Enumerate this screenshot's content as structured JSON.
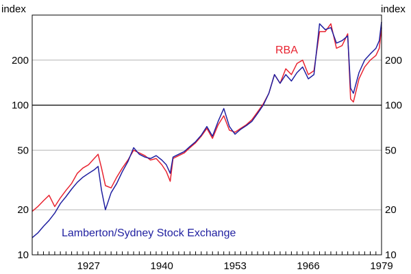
{
  "chart_data": {
    "type": "line",
    "title": "",
    "xlabel": "",
    "ylabel": "index",
    "y_unit_left": "index",
    "y_unit_right": "index",
    "y_scale": "log",
    "ylim": [
      10,
      400
    ],
    "xlim": [
      1917,
      1979
    ],
    "y_ticks": [
      10,
      20,
      50,
      100,
      200
    ],
    "x_ticks": [
      "1927",
      "1940",
      "1953",
      "1966",
      "1979"
    ],
    "grid": true,
    "reference_line_y": 100,
    "legend": "labels-on-chart",
    "colors": {
      "RBA": "#e8222f",
      "Lamberton/Sydney Stock Exchange": "#1f1fa0"
    },
    "series": [
      {
        "name": "RBA",
        "label_text": "RBA",
        "x": [
          1917,
          1918,
          1919,
          1920,
          1921,
          1922,
          1923,
          1924,
          1925,
          1926,
          1927,
          1928,
          1928.7,
          1929.3,
          1930,
          1931,
          1932,
          1933,
          1934,
          1935,
          1936,
          1937,
          1938,
          1939,
          1940,
          1940.8,
          1941.5,
          1942,
          1943,
          1944,
          1945,
          1946,
          1947,
          1948,
          1949,
          1950,
          1951,
          1952,
          1953,
          1954,
          1955,
          1956,
          1957,
          1958,
          1959,
          1960,
          1961,
          1962,
          1963,
          1964,
          1965,
          1966,
          1967,
          1968,
          1969,
          1970,
          1971,
          1972,
          1973,
          1973.5,
          1974,
          1975,
          1976,
          1977,
          1978,
          1978.6,
          1979
        ],
        "values": [
          19.5,
          21,
          23,
          25,
          21,
          24,
          27,
          30,
          35,
          38,
          40,
          44,
          47,
          38,
          29,
          28,
          33,
          38,
          43,
          50,
          48,
          46,
          43,
          44,
          40,
          36,
          31,
          44,
          46,
          48,
          52,
          56,
          62,
          70,
          60,
          74,
          85,
          68,
          66,
          70,
          74,
          80,
          90,
          102,
          120,
          160,
          140,
          175,
          160,
          190,
          200,
          160,
          170,
          310,
          310,
          350,
          240,
          250,
          300,
          110,
          105,
          150,
          180,
          200,
          215,
          240,
          330
        ]
      },
      {
        "name": "Lamberton/Sydney Stock Exchange",
        "label_text": "Lamberton/Sydney Stock Exchange",
        "x": [
          1917,
          1918,
          1919,
          1920,
          1921,
          1922,
          1923,
          1924,
          1925,
          1926,
          1927,
          1928,
          1928.7,
          1929.3,
          1930,
          1931,
          1932,
          1933,
          1934,
          1935,
          1936,
          1937,
          1938,
          1939,
          1940,
          1940.8,
          1941.5,
          1942,
          1943,
          1944,
          1945,
          1946,
          1947,
          1948,
          1949,
          1950,
          1951,
          1952,
          1953,
          1954,
          1955,
          1956,
          1957,
          1958,
          1959,
          1960,
          1961,
          1962,
          1963,
          1964,
          1965,
          1966,
          1967,
          1968,
          1969,
          1970,
          1971,
          1972,
          1973,
          1973.5,
          1974,
          1975,
          1976,
          1977,
          1978,
          1978.6,
          1979
        ],
        "values": [
          13,
          14,
          15.5,
          17,
          19,
          22,
          24.5,
          27.5,
          30.5,
          33,
          35,
          37,
          39,
          27,
          20,
          26,
          30,
          36,
          42,
          52,
          47,
          45,
          44,
          46,
          43,
          40,
          35,
          45,
          47,
          49,
          53,
          57,
          63,
          72,
          62,
          78,
          95,
          72,
          64,
          69,
          73,
          78,
          88,
          100,
          120,
          160,
          140,
          160,
          145,
          165,
          180,
          150,
          160,
          350,
          320,
          330,
          260,
          270,
          290,
          130,
          120,
          165,
          200,
          220,
          240,
          270,
          360
        ]
      }
    ]
  }
}
